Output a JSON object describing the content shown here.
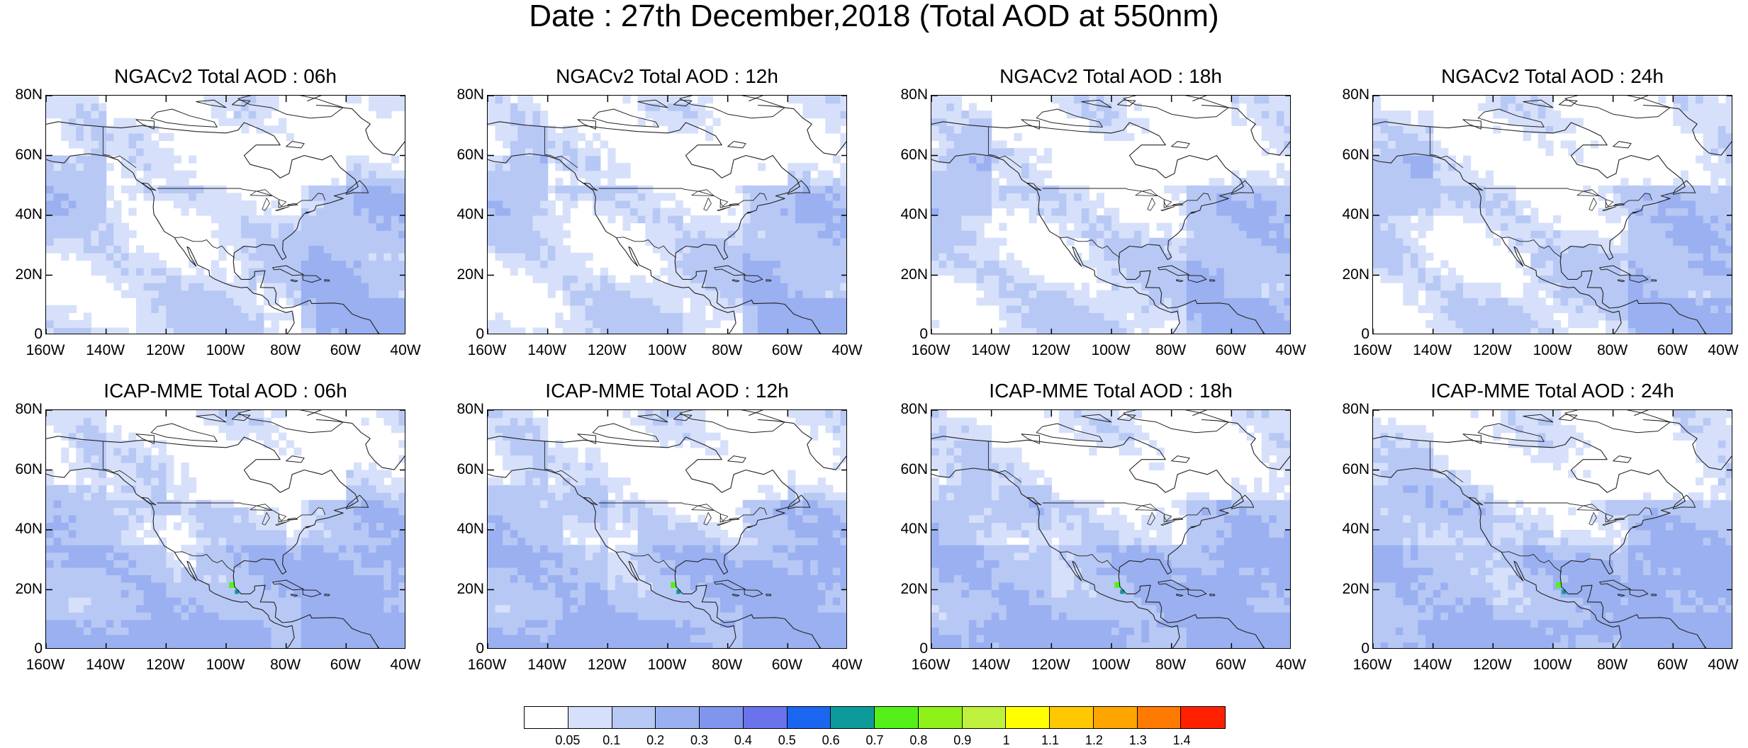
{
  "title": "Date : 27th December,2018 (Total AOD at 550nm)",
  "y_ticks": [
    "80N",
    "60N",
    "40N",
    "20N",
    "0"
  ],
  "x_ticks": [
    "160W",
    "140W",
    "120W",
    "100W",
    "80W",
    "60W",
    "40W"
  ],
  "panels": [
    {
      "title": "NGACv2 Total AOD : 06h",
      "model": "NGACv2",
      "hour": "06h"
    },
    {
      "title": "NGACv2 Total AOD : 12h",
      "model": "NGACv2",
      "hour": "12h"
    },
    {
      "title": "NGACv2 Total AOD : 18h",
      "model": "NGACv2",
      "hour": "18h"
    },
    {
      "title": "NGACv2 Total AOD : 24h",
      "model": "NGACv2",
      "hour": "24h"
    },
    {
      "title": "ICAP-MME Total AOD : 06h",
      "model": "ICAP-MME",
      "hour": "06h"
    },
    {
      "title": "ICAP-MME Total AOD : 12h",
      "model": "ICAP-MME",
      "hour": "12h"
    },
    {
      "title": "ICAP-MME Total AOD : 18h",
      "model": "ICAP-MME",
      "hour": "18h"
    },
    {
      "title": "ICAP-MME Total AOD : 24h",
      "model": "ICAP-MME",
      "hour": "24h"
    }
  ],
  "colorbar": {
    "labels": [
      "0.05",
      "0.1",
      "0.2",
      "0.3",
      "0.4",
      "0.5",
      "0.6",
      "0.7",
      "0.8",
      "0.9",
      "1",
      "1.1",
      "1.2",
      "1.3",
      "1.4"
    ],
    "colors": [
      "#ffffff",
      "#d6e0fa",
      "#b7c8f5",
      "#9ab0f1",
      "#8095ee",
      "#6a73ec",
      "#1a66f0",
      "#0d9a9a",
      "#55f01a",
      "#8ef21a",
      "#bff03e",
      "#ffff00",
      "#ffc800",
      "#ffa500",
      "#ff7a00",
      "#ff2000"
    ]
  }
}
